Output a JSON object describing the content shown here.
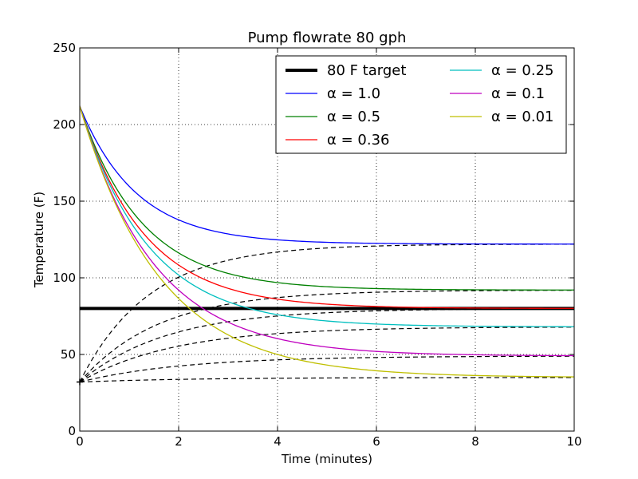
{
  "chart_data": {
    "type": "line",
    "title": "Pump flowrate 80 gph",
    "xlabel": "Time (minutes)",
    "ylabel": "Temperature (F)",
    "xlim": [
      0,
      10
    ],
    "ylim": [
      0,
      250
    ],
    "xticks": [
      "0",
      "2",
      "4",
      "6",
      "8",
      "10"
    ],
    "yticks": [
      "0",
      "50",
      "100",
      "150",
      "200",
      "250"
    ],
    "grid": true,
    "legend_position": "top-right",
    "target": {
      "name": "80 F target",
      "value": 80,
      "color": "#000000"
    },
    "initial_temp": 212,
    "start_temp": 32,
    "series": [
      {
        "name": "α = 1.0",
        "color": "#0000ff",
        "steady": 122,
        "tau_cool": 1.15
      },
      {
        "name": "α = 0.5",
        "color": "#008000",
        "steady": 92,
        "tau_cool": 1.25
      },
      {
        "name": "α = 0.36",
        "color": "#ff0000",
        "steady": 80,
        "tau_cool": 1.3
      },
      {
        "name": "α = 0.25",
        "color": "#00bfbf",
        "steady": 68,
        "tau_cool": 1.38
      },
      {
        "name": "α = 0.1",
        "color": "#bf00bf",
        "steady": 49,
        "tau_cool": 1.5
      },
      {
        "name": "α = 0.01",
        "color": "#bfbf00",
        "steady": 35,
        "tau_cool": 1.62
      }
    ],
    "warming_curves": [
      {
        "steady": 122,
        "tau": 1.4
      },
      {
        "steady": 92,
        "tau": 1.6
      },
      {
        "steady": 80,
        "tau": 1.75
      },
      {
        "steady": 68,
        "tau": 1.9
      },
      {
        "steady": 49,
        "tau": 2.1
      },
      {
        "steady": 35,
        "tau": 2.3
      }
    ]
  }
}
